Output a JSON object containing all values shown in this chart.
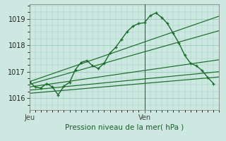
{
  "bg_color": "#cce8e0",
  "grid_color": "#99ccbb",
  "line_color": "#1a6b2a",
  "xlabel": "Pression niveau de la mer( hPa )",
  "yticks": [
    1016,
    1017,
    1018,
    1019
  ],
  "ylim": [
    1015.55,
    1019.55
  ],
  "xlim": [
    0,
    33
  ],
  "day_ticks": [
    0,
    20
  ],
  "day_labels": [
    "Jeu",
    "Ven"
  ],
  "main_line_x": [
    0,
    1,
    2,
    3,
    4,
    5,
    6,
    7,
    8,
    9,
    10,
    11,
    12,
    13,
    14,
    15,
    16,
    17,
    18,
    19,
    20,
    21,
    22,
    23,
    24,
    25,
    26,
    27,
    28,
    29,
    30,
    31,
    32
  ],
  "main_line_y": [
    1016.62,
    1016.42,
    1016.38,
    1016.55,
    1016.42,
    1016.12,
    1016.45,
    1016.6,
    1017.08,
    1017.35,
    1017.42,
    1017.22,
    1017.12,
    1017.32,
    1017.7,
    1017.92,
    1018.22,
    1018.52,
    1018.72,
    1018.82,
    1018.85,
    1019.12,
    1019.22,
    1019.05,
    1018.82,
    1018.45,
    1018.08,
    1017.62,
    1017.32,
    1017.22,
    1017.05,
    1016.78,
    1016.55
  ],
  "trend_lines": [
    [
      [
        0,
        1016.62
      ],
      [
        33,
        1019.1
      ]
    ],
    [
      [
        0,
        1016.52
      ],
      [
        33,
        1018.55
      ]
    ],
    [
      [
        0,
        1016.42
      ],
      [
        33,
        1017.45
      ]
    ],
    [
      [
        0,
        1016.3
      ],
      [
        33,
        1017.0
      ]
    ],
    [
      [
        0,
        1016.18
      ],
      [
        33,
        1016.8
      ]
    ]
  ],
  "vline_x": 20,
  "grid_major_lw": 0.6,
  "grid_minor_lw": 0.3
}
